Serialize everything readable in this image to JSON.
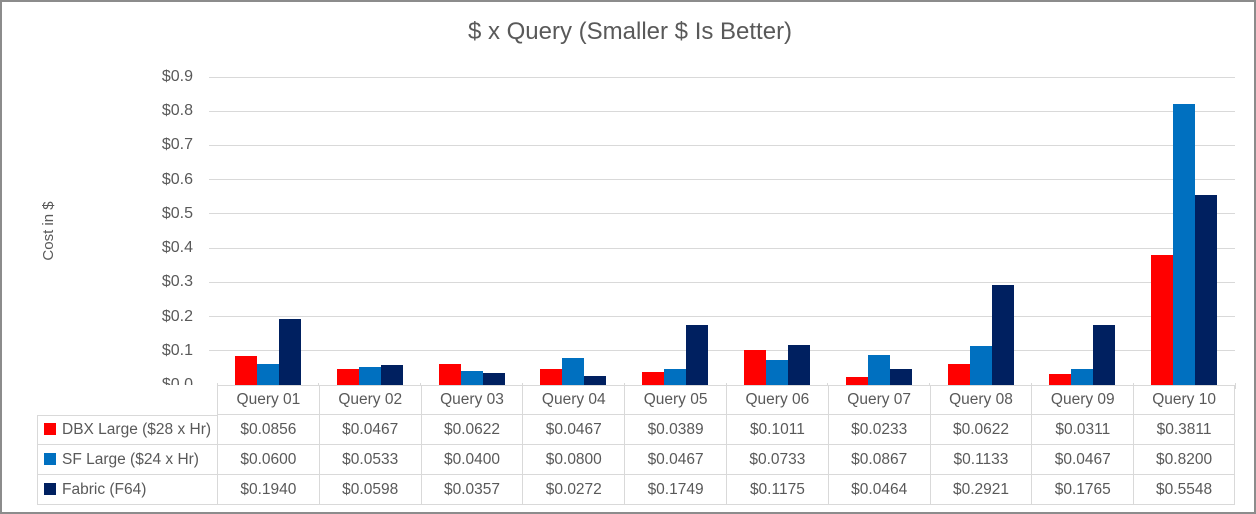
{
  "title": "$ x Query (Smaller $ Is Better)",
  "y_axis": {
    "label": "Cost in $",
    "tick_labels": [
      "$0.0",
      "$0.1",
      "$0.2",
      "$0.3",
      "$0.4",
      "$0.5",
      "$0.6",
      "$0.7",
      "$0.8",
      "$0.9"
    ]
  },
  "chart_data": {
    "type": "bar",
    "title": "$ x Query (Smaller $ Is Better)",
    "xlabel": "",
    "ylabel": "Cost in $",
    "ylim": [
      0,
      0.9
    ],
    "y_tick_step": 0.1,
    "grid": true,
    "legend_position": "data-table-left",
    "categories": [
      "Query 01",
      "Query 02",
      "Query 03",
      "Query 04",
      "Query 05",
      "Query 06",
      "Query 07",
      "Query 08",
      "Query 09",
      "Query 10"
    ],
    "series": [
      {
        "name": "DBX Large ($28 x Hr)",
        "color": "#FF0000",
        "values": [
          0.0856,
          0.0467,
          0.0622,
          0.0467,
          0.0389,
          0.1011,
          0.0233,
          0.0622,
          0.0311,
          0.3811
        ]
      },
      {
        "name": "SF Large ($24 x Hr)",
        "color": "#0070C0",
        "values": [
          0.06,
          0.0533,
          0.04,
          0.08,
          0.0467,
          0.0733,
          0.0867,
          0.1133,
          0.0467,
          0.82
        ]
      },
      {
        "name": "Fabric (F64)",
        "color": "#002060",
        "values": [
          0.194,
          0.0598,
          0.0357,
          0.0272,
          0.1749,
          0.1175,
          0.0464,
          0.2921,
          0.1765,
          0.5548
        ]
      }
    ]
  },
  "data_table": {
    "rows": [
      {
        "label": "DBX Large ($28 x Hr)",
        "swatch_color": "#FF0000",
        "cells": [
          "$0.0856",
          "$0.0467",
          "$0.0622",
          "$0.0467",
          "$0.0389",
          "$0.1011",
          "$0.0233",
          "$0.0622",
          "$0.0311",
          "$0.3811"
        ]
      },
      {
        "label": "SF Large ($24 x Hr)",
        "swatch_color": "#0070C0",
        "cells": [
          "$0.0600",
          "$0.0533",
          "$0.0400",
          "$0.0800",
          "$0.0467",
          "$0.0733",
          "$0.0867",
          "$0.1133",
          "$0.0467",
          "$0.8200"
        ]
      },
      {
        "label": "Fabric (F64)",
        "swatch_color": "#002060",
        "cells": [
          "$0.1940",
          "$0.0598",
          "$0.0357",
          "$0.0272",
          "$0.1749",
          "$0.1175",
          "$0.0464",
          "$0.2921",
          "$0.1765",
          "$0.5548"
        ]
      }
    ]
  },
  "colors": {
    "text": "#595959",
    "gridline": "#D9D9D9",
    "table_border": "#D9D9D9",
    "frame_border": "#8C8C8C",
    "background": "#FFFFFF"
  }
}
